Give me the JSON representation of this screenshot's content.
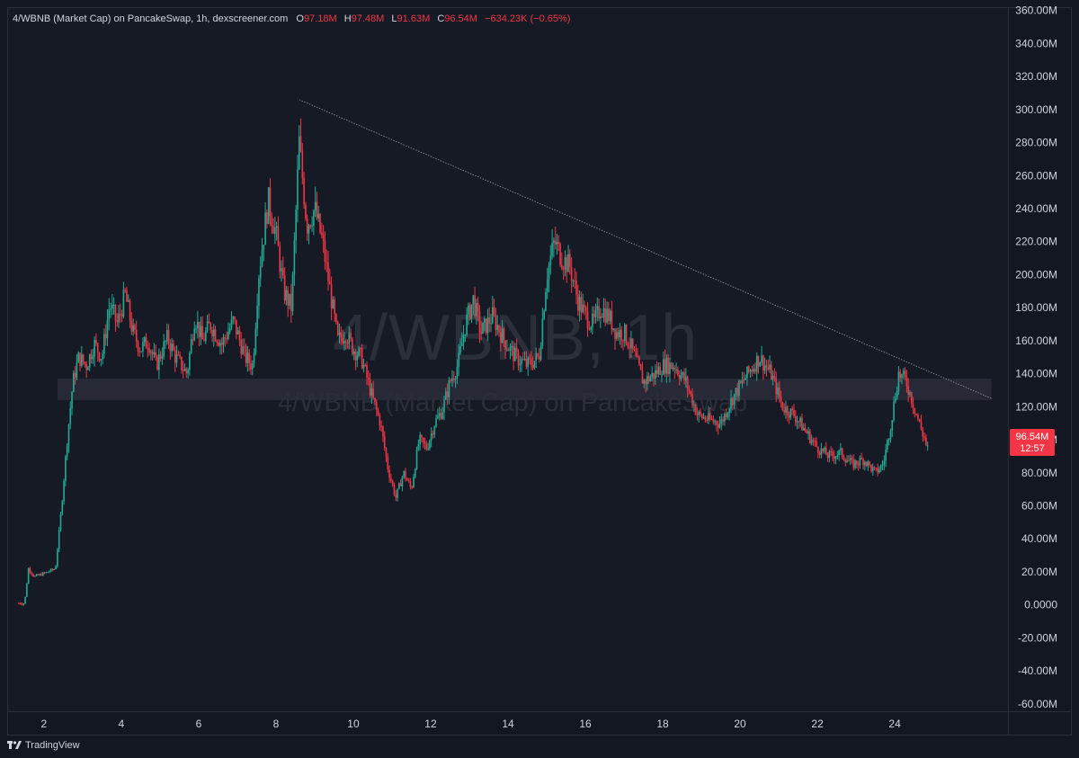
{
  "legend": {
    "symbol": "4/WBNB (Market Cap) on PancakeSwap, 1h, dexscreener.com",
    "open_key": "O",
    "open": "97.18M",
    "high_key": "H",
    "high": "97.48M",
    "low_key": "L",
    "low": "91.63M",
    "close_key": "C",
    "close": "96.54M",
    "change": "−634.23K (−0.65%)"
  },
  "watermark": {
    "title": "4/WBNB, 1h",
    "subtitle": "4/WBNB (Market Cap) on PancakeSwap"
  },
  "last_price": {
    "value": "96.54M",
    "countdown": "12:57"
  },
  "footer": {
    "brand": "TradingView"
  },
  "colors": {
    "background": "#161a25",
    "up": "#22ab94",
    "down": "#f23645",
    "text": "#d1d4dc",
    "trendline": "#9598a1",
    "zone": "#2a2e39"
  },
  "chart_data": {
    "type": "candlestick",
    "interval": "1h",
    "y_tick_labels": [
      "360.00M",
      "340.00M",
      "320.00M",
      "300.00M",
      "280.00M",
      "260.00M",
      "240.00M",
      "220.00M",
      "200.00M",
      "180.00M",
      "160.00M",
      "140.00M",
      "120.00M",
      "100.00M",
      "80.00M",
      "60.00M",
      "40.00M",
      "20.00M",
      "0.0000",
      "-20.00M",
      "-40.00M",
      "-60.00M"
    ],
    "y_tick_values": [
      360,
      340,
      320,
      300,
      280,
      260,
      240,
      220,
      200,
      180,
      160,
      140,
      120,
      100,
      80,
      60,
      40,
      20,
      0,
      -20,
      -40,
      -60
    ],
    "ylim": [
      -65,
      362
    ],
    "y_unit": "M",
    "x_tick_labels": [
      "2",
      "4",
      "6",
      "8",
      "10",
      "12",
      "14",
      "16",
      "18",
      "20",
      "22",
      "24"
    ],
    "x_tick_values": [
      2,
      4,
      6,
      8,
      10,
      12,
      14,
      16,
      18,
      20,
      22,
      24
    ],
    "xlim": [
      1.05,
      26.95
    ],
    "path_points_day_close": [
      [
        1.35,
        1
      ],
      [
        1.5,
        1
      ],
      [
        1.6,
        22
      ],
      [
        1.75,
        17
      ],
      [
        2.0,
        19
      ],
      [
        2.3,
        22
      ],
      [
        2.45,
        58
      ],
      [
        2.6,
        100
      ],
      [
        2.75,
        135
      ],
      [
        2.9,
        150
      ],
      [
        3.1,
        145
      ],
      [
        3.3,
        158
      ],
      [
        3.5,
        150
      ],
      [
        3.7,
        182
      ],
      [
        3.9,
        170
      ],
      [
        4.1,
        188
      ],
      [
        4.3,
        165
      ],
      [
        4.5,
        155
      ],
      [
        4.7,
        160
      ],
      [
        4.9,
        145
      ],
      [
        5.2,
        162
      ],
      [
        5.4,
        150
      ],
      [
        5.7,
        140
      ],
      [
        5.9,
        175
      ],
      [
        6.1,
        160
      ],
      [
        6.3,
        170
      ],
      [
        6.6,
        158
      ],
      [
        6.9,
        172
      ],
      [
        7.2,
        150
      ],
      [
        7.4,
        145
      ],
      [
        7.55,
        200
      ],
      [
        7.8,
        245
      ],
      [
        8.0,
        225
      ],
      [
        8.2,
        190
      ],
      [
        8.4,
        180
      ],
      [
        8.6,
        280
      ],
      [
        8.8,
        230
      ],
      [
        9.0,
        240
      ],
      [
        9.2,
        220
      ],
      [
        9.4,
        190
      ],
      [
        9.6,
        160
      ],
      [
        9.8,
        165
      ],
      [
        10.0,
        155
      ],
      [
        10.2,
        150
      ],
      [
        10.5,
        125
      ],
      [
        10.7,
        110
      ],
      [
        10.9,
        82
      ],
      [
        11.1,
        65
      ],
      [
        11.3,
        80
      ],
      [
        11.5,
        70
      ],
      [
        11.7,
        100
      ],
      [
        11.9,
        95
      ],
      [
        12.1,
        110
      ],
      [
        12.3,
        118
      ],
      [
        12.5,
        135
      ],
      [
        12.7,
        145
      ],
      [
        12.9,
        170
      ],
      [
        13.1,
        185
      ],
      [
        13.3,
        165
      ],
      [
        13.6,
        175
      ],
      [
        13.9,
        160
      ],
      [
        14.2,
        150
      ],
      [
        14.5,
        145
      ],
      [
        14.8,
        150
      ],
      [
        15.0,
        200
      ],
      [
        15.2,
        220
      ],
      [
        15.4,
        210
      ],
      [
        15.6,
        205
      ],
      [
        15.8,
        185
      ],
      [
        16.0,
        175
      ],
      [
        16.2,
        170
      ],
      [
        16.4,
        180
      ],
      [
        16.6,
        175
      ],
      [
        16.8,
        165
      ],
      [
        17.0,
        165
      ],
      [
        17.2,
        155
      ],
      [
        17.5,
        135
      ],
      [
        17.8,
        140
      ],
      [
        18.0,
        145
      ],
      [
        18.3,
        145
      ],
      [
        18.6,
        135
      ],
      [
        18.9,
        115
      ],
      [
        19.2,
        112
      ],
      [
        19.5,
        110
      ],
      [
        19.8,
        125
      ],
      [
        20.2,
        140
      ],
      [
        20.5,
        150
      ],
      [
        20.8,
        140
      ],
      [
        21.1,
        120
      ],
      [
        21.4,
        115
      ],
      [
        21.7,
        105
      ],
      [
        22.0,
        95
      ],
      [
        22.3,
        90
      ],
      [
        22.6,
        92
      ],
      [
        22.9,
        85
      ],
      [
        23.2,
        88
      ],
      [
        23.5,
        80
      ],
      [
        23.7,
        85
      ],
      [
        23.9,
        110
      ],
      [
        24.1,
        140
      ],
      [
        24.3,
        135
      ],
      [
        24.5,
        120
      ],
      [
        24.7,
        105
      ],
      [
        24.85,
        96.54
      ]
    ],
    "trendline": {
      "from": [
        8.6,
        306
      ],
      "to": [
        26.5,
        125
      ]
    },
    "zone": {
      "x_from": 2.35,
      "x_to": 26.5,
      "y_from": 124,
      "y_to": 137
    },
    "last_close": 96.54
  }
}
